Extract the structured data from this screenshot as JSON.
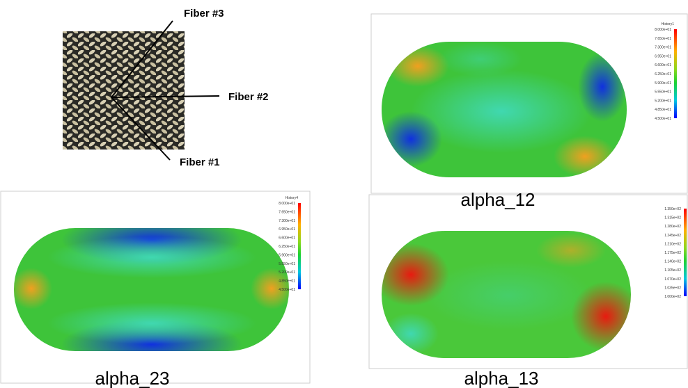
{
  "fiber_labels": [
    "Fiber #3",
    "Fiber #2",
    "Fiber #1"
  ],
  "panels": [
    {
      "caption": "alpha_12",
      "legend": {
        "title": "History1",
        "labels": [
          "8.000e+01",
          "7.650e+01",
          "7.300e+01",
          "6.950e+01",
          "6.600e+01",
          "6.250e+01",
          "5.900e+01",
          "5.550e+01",
          "5.200e+01",
          "4.850e+01",
          "4.500e+01"
        ]
      }
    },
    {
      "caption": "alpha_23",
      "legend": {
        "title": "History4",
        "labels": [
          "8.000e+01",
          "7.650e+01",
          "7.300e+01",
          "6.950e+01",
          "6.600e+01",
          "6.250e+01",
          "5.900e+01",
          "5.550e+01",
          "5.200e+01",
          "4.850e+01",
          "4.500e+01"
        ]
      }
    },
    {
      "caption": "alpha_13",
      "legend": {
        "labels": [
          "1.350e+02",
          "1.315e+02",
          "1.280e+02",
          "1.245e+02",
          "1.210e+02",
          "1.175e+02",
          "1.140e+02",
          "1.105e+02",
          "1.070e+02",
          "1.035e+02",
          "1.000e+02"
        ]
      }
    }
  ]
}
